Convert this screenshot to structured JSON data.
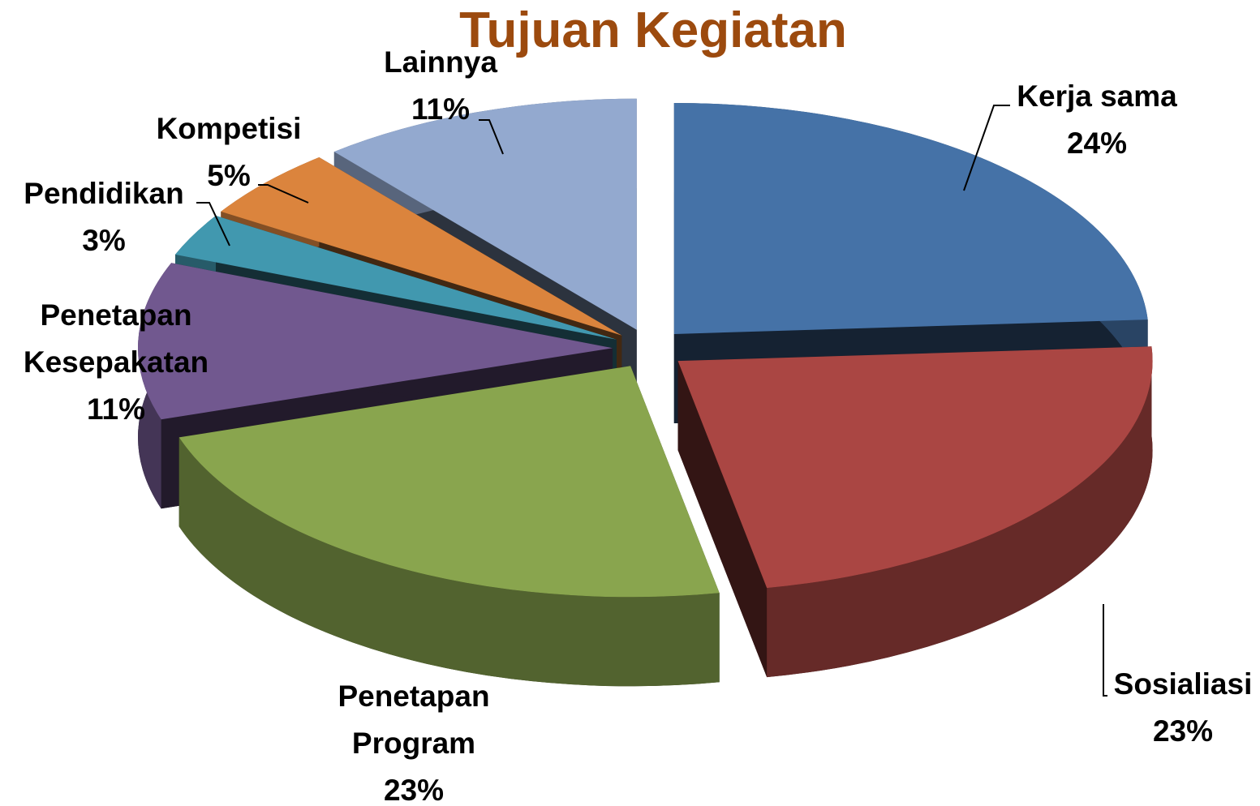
{
  "chart_data": {
    "type": "pie",
    "title": "Tujuan Kegiatan",
    "categories": [
      "Kerja sama",
      "Sosialiasi",
      "Penetapan Program",
      "Penetapan Kesepakatan",
      "Pendidikan",
      "Kompetisi",
      "Lainnya"
    ],
    "values": [
      24,
      23,
      23,
      11,
      3,
      5,
      11
    ],
    "value_labels": [
      "24%",
      "23%",
      "23%",
      "11%",
      "3%",
      "5%",
      "11%"
    ],
    "colors": [
      "#4572a7",
      "#aa4643",
      "#89a54e",
      "#71588f",
      "#4198af",
      "#db843d",
      "#93a9cf"
    ]
  }
}
